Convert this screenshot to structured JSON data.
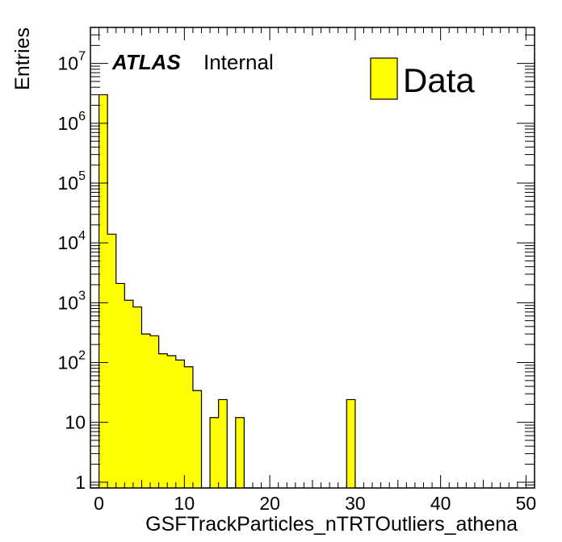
{
  "chart_data": {
    "type": "bar",
    "style": "histogram",
    "xlabel": "GSFTrackParticles_nTRTOutliers_athena",
    "ylabel": "Entries",
    "xlim": [
      -1,
      51
    ],
    "ylim": [
      0.8,
      40000000
    ],
    "yscale": "log",
    "bin_width": 1,
    "series": [
      {
        "name": "Data",
        "bin_edges_start": [
          -1,
          0,
          1,
          2,
          3,
          4,
          5,
          6,
          7,
          8,
          9,
          10,
          11,
          12,
          13,
          14,
          15,
          16,
          17,
          18,
          29,
          30
        ],
        "values": [
          0.8,
          3000000,
          14000,
          2100,
          1100,
          850,
          300,
          280,
          140,
          130,
          110,
          85,
          34,
          0.8,
          12,
          24,
          0.8,
          12,
          0.8,
          0.8,
          24,
          0.8
        ]
      }
    ],
    "x_ticks": [
      {
        "value": 0,
        "label": "0"
      },
      {
        "value": 10,
        "label": "10"
      },
      {
        "value": 20,
        "label": "20"
      },
      {
        "value": 30,
        "label": "30"
      },
      {
        "value": 40,
        "label": "40"
      },
      {
        "value": 50,
        "label": "50"
      }
    ],
    "y_ticks": [
      {
        "value": 1,
        "base": "1",
        "exp": ""
      },
      {
        "value": 10,
        "base": "10",
        "exp": ""
      },
      {
        "value": 100,
        "base": "10",
        "exp": "2"
      },
      {
        "value": 1000,
        "base": "10",
        "exp": "3"
      },
      {
        "value": 10000,
        "base": "10",
        "exp": "4"
      },
      {
        "value": 100000,
        "base": "10",
        "exp": "5"
      },
      {
        "value": 1000000,
        "base": "10",
        "exp": "6"
      },
      {
        "value": 10000000,
        "base": "10",
        "exp": "7"
      }
    ],
    "legend": {
      "position": "top-right",
      "entries": [
        "Data"
      ]
    },
    "annotations": {
      "atlas": "ATLAS",
      "status": "Internal"
    },
    "colors": {
      "fill": "#ffff00",
      "line": "#000000",
      "frame": "#000000"
    },
    "grid": false
  }
}
